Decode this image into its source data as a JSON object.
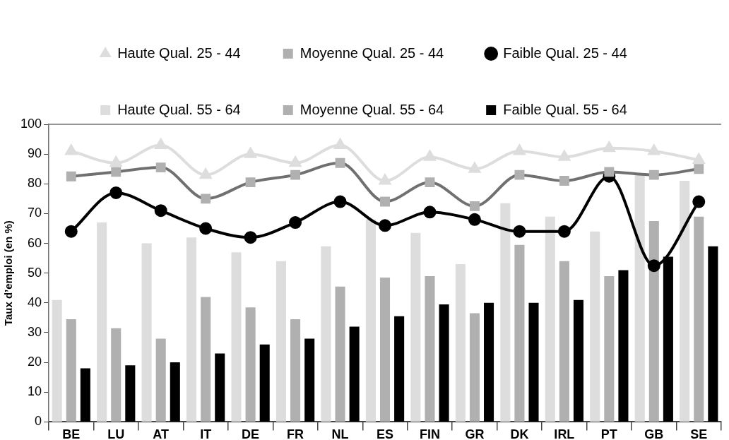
{
  "chart_data": {
    "type": "bar",
    "ylabel": "Taux d’emploi (en %)",
    "categories": [
      "BE",
      "LU",
      "AT",
      "IT",
      "DE",
      "FR",
      "NL",
      "ES",
      "FIN",
      "GR",
      "DK",
      "IRL",
      "PT",
      "GB",
      "SE"
    ],
    "series": [
      {
        "name": "Haute Qual. 25 - 44",
        "type": "line",
        "marker": "triangle",
        "color": "#dddddd",
        "values": [
          91,
          87,
          93,
          83,
          90,
          87,
          93,
          81,
          89,
          85,
          91,
          89,
          92,
          91,
          88
        ]
      },
      {
        "name": "Moyenne Qual. 25 - 44",
        "type": "line",
        "marker": "square",
        "color": "#707070",
        "values": [
          82.5,
          84,
          85.5,
          75,
          80.5,
          83,
          87,
          74,
          80.5,
          72.5,
          83,
          81,
          84,
          83,
          85
        ]
      },
      {
        "name": "Faible Qual. 25 - 44",
        "type": "line",
        "marker": "circle",
        "color": "#000000",
        "values": [
          64,
          77,
          71,
          65,
          62,
          67,
          74,
          66,
          70.5,
          68,
          64,
          64,
          82.5,
          52.5,
          74
        ]
      },
      {
        "name": "Haute Qual. 55 - 64",
        "color": "#dddddd",
        "values": [
          41,
          67,
          60,
          62,
          57,
          54,
          59,
          68,
          63.5,
          53,
          73.5,
          69,
          64,
          83,
          81
        ]
      },
      {
        "name": "Moyenne Qual. 55 - 64",
        "color": "#b0b0b0",
        "values": [
          34.5,
          31.5,
          28,
          42,
          38.5,
          34.5,
          45.5,
          48.5,
          49,
          36.5,
          59.5,
          54,
          49,
          67.5,
          69
        ]
      },
      {
        "name": "Faible Qual. 55 - 64",
        "color": "#000000",
        "values": [
          18,
          19,
          20,
          23,
          26,
          28,
          32,
          35.5,
          39.5,
          40,
          40,
          41,
          51,
          55.5,
          59
        ]
      }
    ],
    "ylim": [
      0,
      100
    ],
    "yticks": [
      0,
      10,
      20,
      30,
      40,
      50,
      60,
      70,
      80,
      90,
      100
    ],
    "legend": "top"
  }
}
